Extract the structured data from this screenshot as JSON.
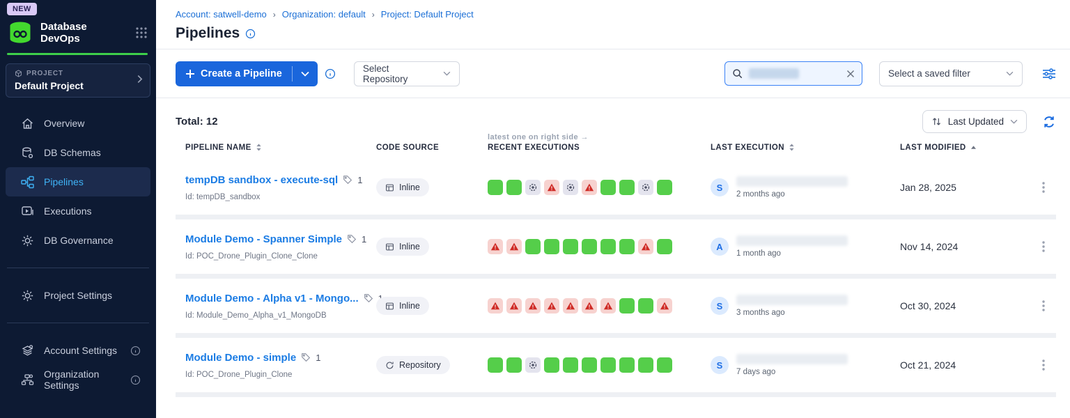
{
  "colors": {
    "sidebar_bg": "#0d1a33",
    "accent_blue": "#1a66dc",
    "link_blue": "#1b74dc",
    "active_nav_cyan": "#3fb3f6",
    "brand_green": "#3ecf4a",
    "success_green": "#55ce4a",
    "warning_red": "#cf2b26",
    "warning_bg": "#f7d2cf",
    "neutral_chip_bg": "#e4e4ee"
  },
  "icons": {
    "app_logo": "green-database-cylinder",
    "grid": "app-grid-dots",
    "search": "magnifier",
    "clear": "x",
    "refresh": "circular-arrows",
    "filter": "horizontal-sliders",
    "row_menu": "kebab-vertical-dots",
    "execution_success": "green-square",
    "execution_warning": "red-warning-triangle",
    "execution_config": "dashed-circle-dot"
  },
  "sidebar": {
    "new_badge": "NEW",
    "app_name": "Database DevOps",
    "project": {
      "label": "PROJECT",
      "name": "Default Project"
    },
    "nav": [
      {
        "label": "Overview"
      },
      {
        "label": "DB Schemas"
      },
      {
        "label": "Pipelines"
      },
      {
        "label": "Executions"
      },
      {
        "label": "DB Governance"
      }
    ],
    "nav_secondary": [
      {
        "label": "Project Settings"
      }
    ],
    "nav_tertiary": [
      {
        "label": "Account Settings"
      },
      {
        "label": "Organization Settings"
      }
    ]
  },
  "header": {
    "breadcrumb": [
      "Account: satwell-demo",
      "Organization: default",
      "Project: Default Project"
    ],
    "title": "Pipelines"
  },
  "toolbar": {
    "create_button_label": "Create a Pipeline",
    "repository_dropdown": "Select Repository",
    "saved_filter_dropdown": "Select a saved filter"
  },
  "list": {
    "total": "Total: 12",
    "sort": "Last Updated",
    "executions_note": "latest one on right side →",
    "columns": {
      "name": "PIPELINE NAME",
      "code_source": "CODE SOURCE",
      "recent_executions": "RECENT EXECUTIONS",
      "last_execution": "LAST EXECUTION",
      "last_modified": "LAST MODIFIED"
    },
    "rows": [
      {
        "name": "tempDB sandbox - execute-sql",
        "tag_count": "1",
        "id": "Id: tempDB_sandbox",
        "code_source": "Inline",
        "executions": [
          "success",
          "success",
          "config",
          "warning",
          "config",
          "warning",
          "success",
          "success",
          "config",
          "success"
        ],
        "avatar": "S",
        "last_execution_ago": "2 months ago",
        "last_modified": "Jan 28, 2025"
      },
      {
        "name": "Module Demo - Spanner Simple",
        "tag_count": "1",
        "id": "Id: POC_Drone_Plugin_Clone_Clone",
        "code_source": "Inline",
        "executions": [
          "warning",
          "warning",
          "success",
          "success",
          "success",
          "success",
          "success",
          "success",
          "warning",
          "success"
        ],
        "avatar": "A",
        "last_execution_ago": "1 month ago",
        "last_modified": "Nov 14, 2024"
      },
      {
        "name": "Module Demo - Alpha v1 - Mongo...",
        "tag_count": "1",
        "id": "Id: Module_Demo_Alpha_v1_MongoDB",
        "code_source": "Inline",
        "executions": [
          "warning",
          "warning",
          "warning",
          "warning",
          "warning",
          "warning",
          "warning",
          "success",
          "success",
          "warning"
        ],
        "avatar": "S",
        "last_execution_ago": "3 months ago",
        "last_modified": "Oct 30, 2024"
      },
      {
        "name": "Module Demo - simple",
        "tag_count": "1",
        "id": "Id: POC_Drone_Plugin_Clone",
        "code_source": "Repository",
        "executions": [
          "success",
          "success",
          "config",
          "success",
          "success",
          "success",
          "success",
          "success",
          "success",
          "success"
        ],
        "avatar": "S",
        "last_execution_ago": "7 days ago",
        "last_modified": "Oct 21, 2024"
      }
    ]
  }
}
